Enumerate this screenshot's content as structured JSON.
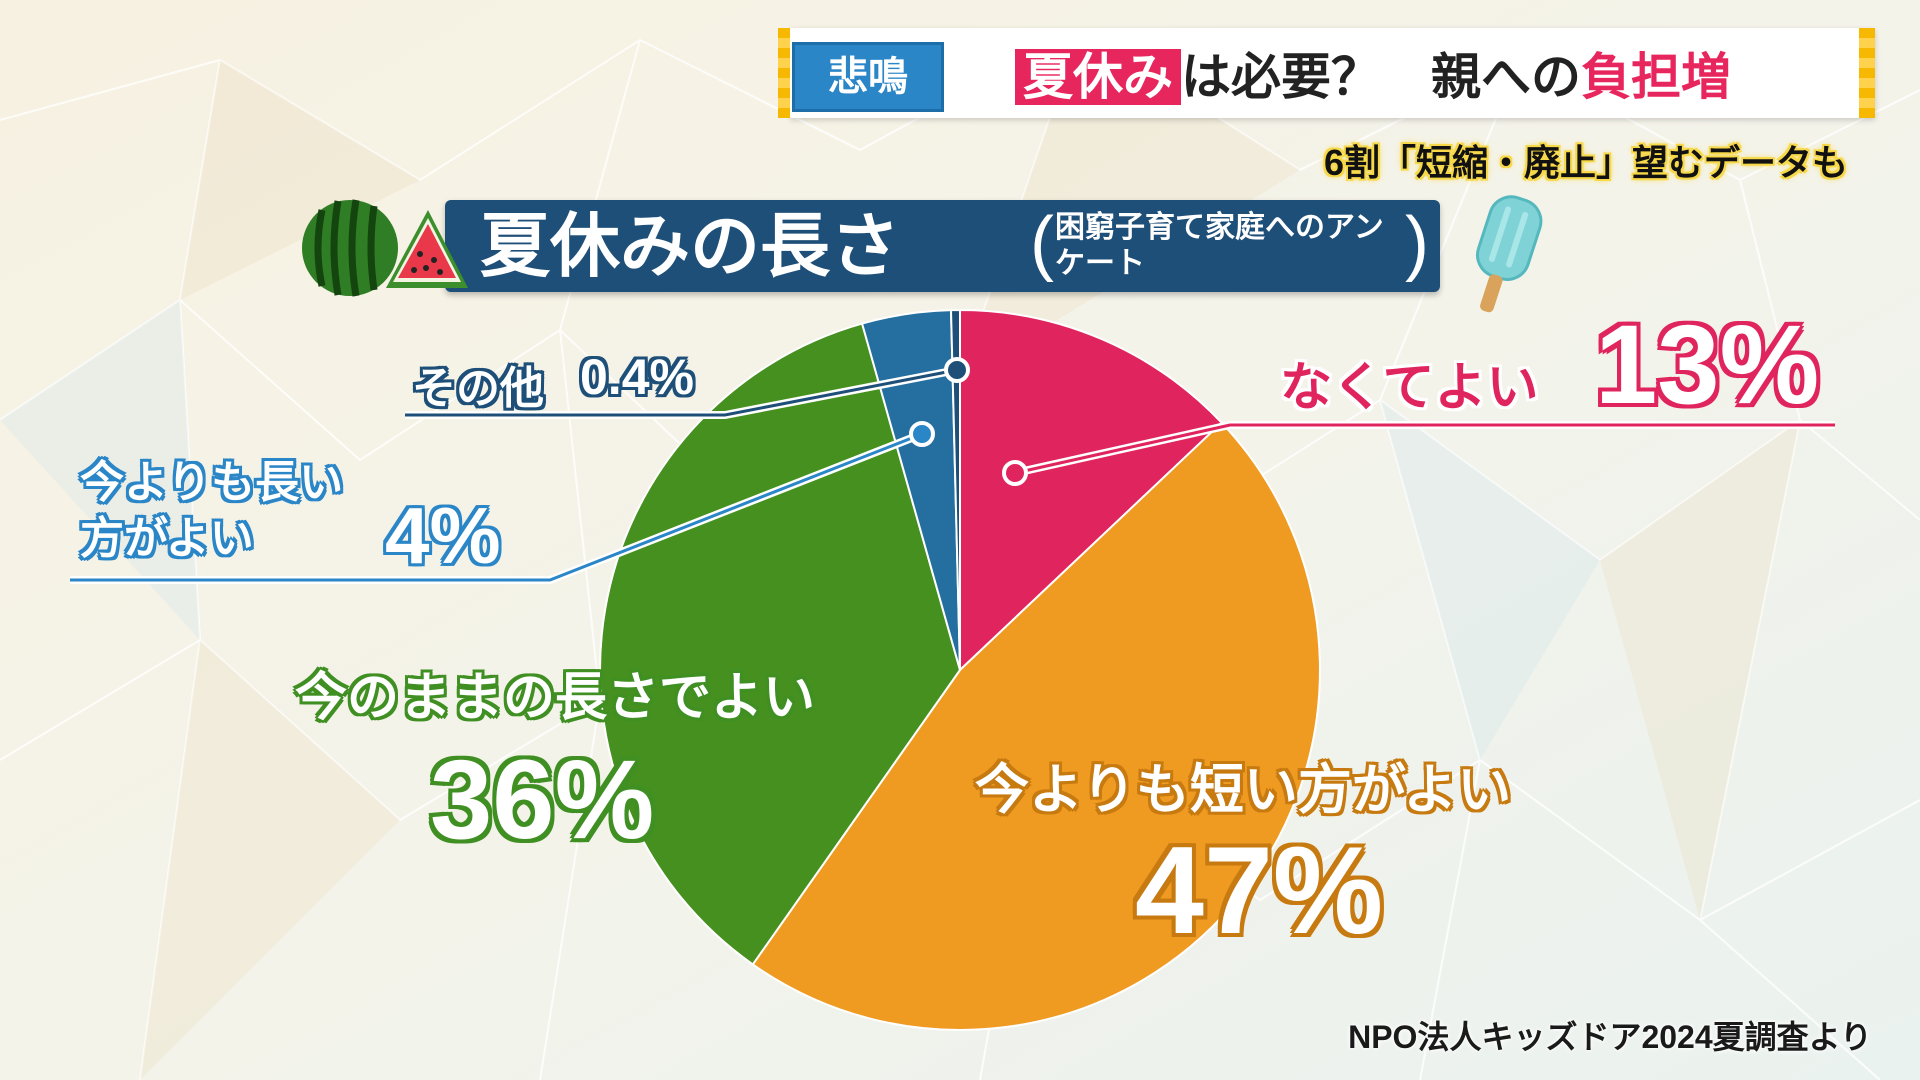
{
  "ticker": {
    "tag": "悲鳴",
    "headline_part1": "夏休み",
    "headline_part2": "は必要？　親への",
    "headline_part3": "負担増",
    "sub": "6割「短縮・廃止」望むデータも"
  },
  "title": {
    "main": "夏休みの長さ",
    "sub": "困窮子育て家庭へのアンケート",
    "paren_left": "(",
    "paren_right": ")"
  },
  "labels": {
    "none_text": "なくてよい",
    "none_pct": "13%",
    "other_text": "その他",
    "other_pct": "0.4%",
    "longer_text": "今よりも長い方がよい",
    "longer_pct": "4%",
    "same_text": "今のままの長さでよい",
    "same_pct": "36%",
    "shorter_text": "今よりも短い方がよい",
    "shorter_pct": "47%"
  },
  "source": "NPO法人キッズドア2024夏調査より",
  "colors": {
    "none": "#e0245e",
    "shorter": "#ef9a21",
    "same": "#46901f",
    "longer": "#246fa0",
    "other": "#1e4f78"
  },
  "chart_data": {
    "type": "pie",
    "title": "夏休みの長さ",
    "subtitle": "困窮子育て家庭へのアンケート",
    "categories": [
      "なくてよい",
      "今よりも短い方がよい",
      "今のままの長さでよい",
      "今よりも長い方がよい",
      "その他"
    ],
    "values": [
      13,
      47,
      36,
      4,
      0.4
    ],
    "unit": "%",
    "start_angle": "12 o'clock",
    "direction": "clockwise"
  }
}
